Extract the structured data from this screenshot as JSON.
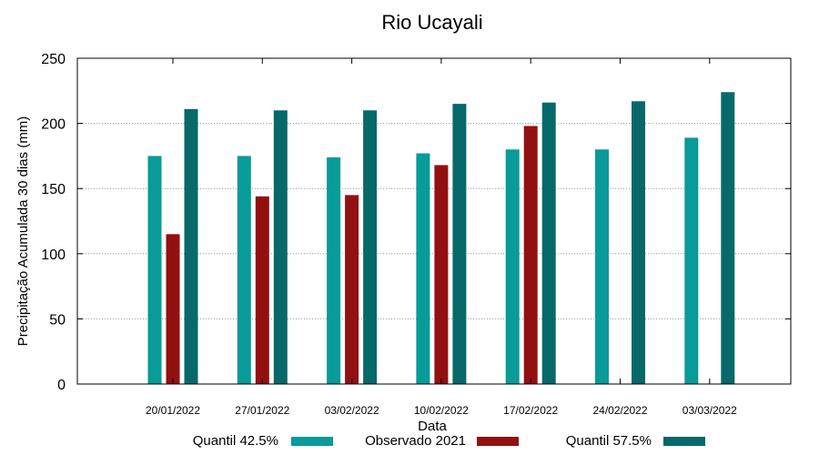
{
  "chart_data": {
    "type": "bar",
    "title": "Rio Ucayali",
    "xlabel": "Data",
    "ylabel": "Precipitação Acumulada 30 dias (mm)",
    "ylim": [
      0,
      250
    ],
    "yticks": [
      0,
      50,
      100,
      150,
      200,
      250
    ],
    "grid": true,
    "legend_position": "bottom",
    "categories": [
      "20/01/2022",
      "27/01/2022",
      "03/02/2022",
      "10/02/2022",
      "17/02/2022",
      "24/02/2022",
      "03/03/2022"
    ],
    "series": [
      {
        "name": "Quantil 42.5%",
        "color": "#099a9a",
        "values": [
          175,
          175,
          174,
          177,
          180,
          180,
          189
        ]
      },
      {
        "name": "Observado 2021",
        "color": "#931010",
        "values": [
          115,
          144,
          145,
          168,
          198,
          null,
          null
        ]
      },
      {
        "name": "Quantil 57.5%",
        "color": "#07696a",
        "values": [
          211,
          210,
          210,
          215,
          216,
          217,
          224
        ]
      }
    ]
  }
}
